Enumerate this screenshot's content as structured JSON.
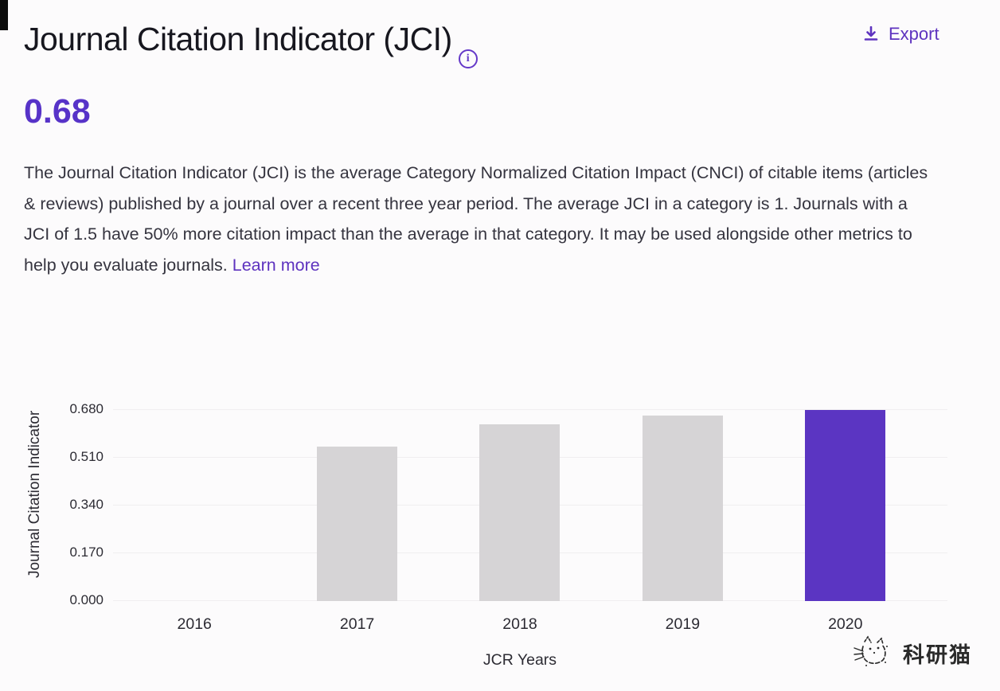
{
  "header": {
    "title": "Journal Citation Indicator (JCI)",
    "info_icon": "info-icon",
    "export_label": "Export",
    "export_icon": "download-icon"
  },
  "metric": {
    "value": "0.68"
  },
  "description": {
    "text": "The Journal Citation Indicator (JCI) is the average Category Normalized Citation Impact (CNCI) of citable items (articles & reviews) published by a journal over a recent three year period. The average JCI in a category is 1. Journals with a JCI of 1.5 have 50% more citation impact than the average in that category. It may be used alongside other metrics to help you evaluate journals. ",
    "link_label": "Learn more"
  },
  "chart_data": {
    "type": "bar",
    "categories": [
      "2016",
      "2017",
      "2018",
      "2019",
      "2020"
    ],
    "values": [
      null,
      0.55,
      0.63,
      0.66,
      0.68
    ],
    "highlight_category": "2020",
    "title": "",
    "xlabel": "JCR Years",
    "ylabel": "Journal Citation Indicator",
    "yticks": [
      "0.680",
      "0.510",
      "0.340",
      "0.170",
      "0.000"
    ],
    "ylim": [
      0,
      0.68
    ],
    "grid": true,
    "legend": "none",
    "bar_color": "#d6d4d6",
    "highlight_color": "#5b35c2"
  },
  "watermark": {
    "text": "科研猫",
    "logo": "cat-sketch-icon"
  },
  "colors": {
    "accent_purple": "#5b35c9",
    "link_purple": "#5e33bf",
    "bar_gray": "#d6d4d6",
    "bar_purple": "#5b35c2",
    "gridline": "#f0eef0",
    "background": "#fcfbfc",
    "title_text": "#17171f",
    "body_text": "#35343f"
  }
}
